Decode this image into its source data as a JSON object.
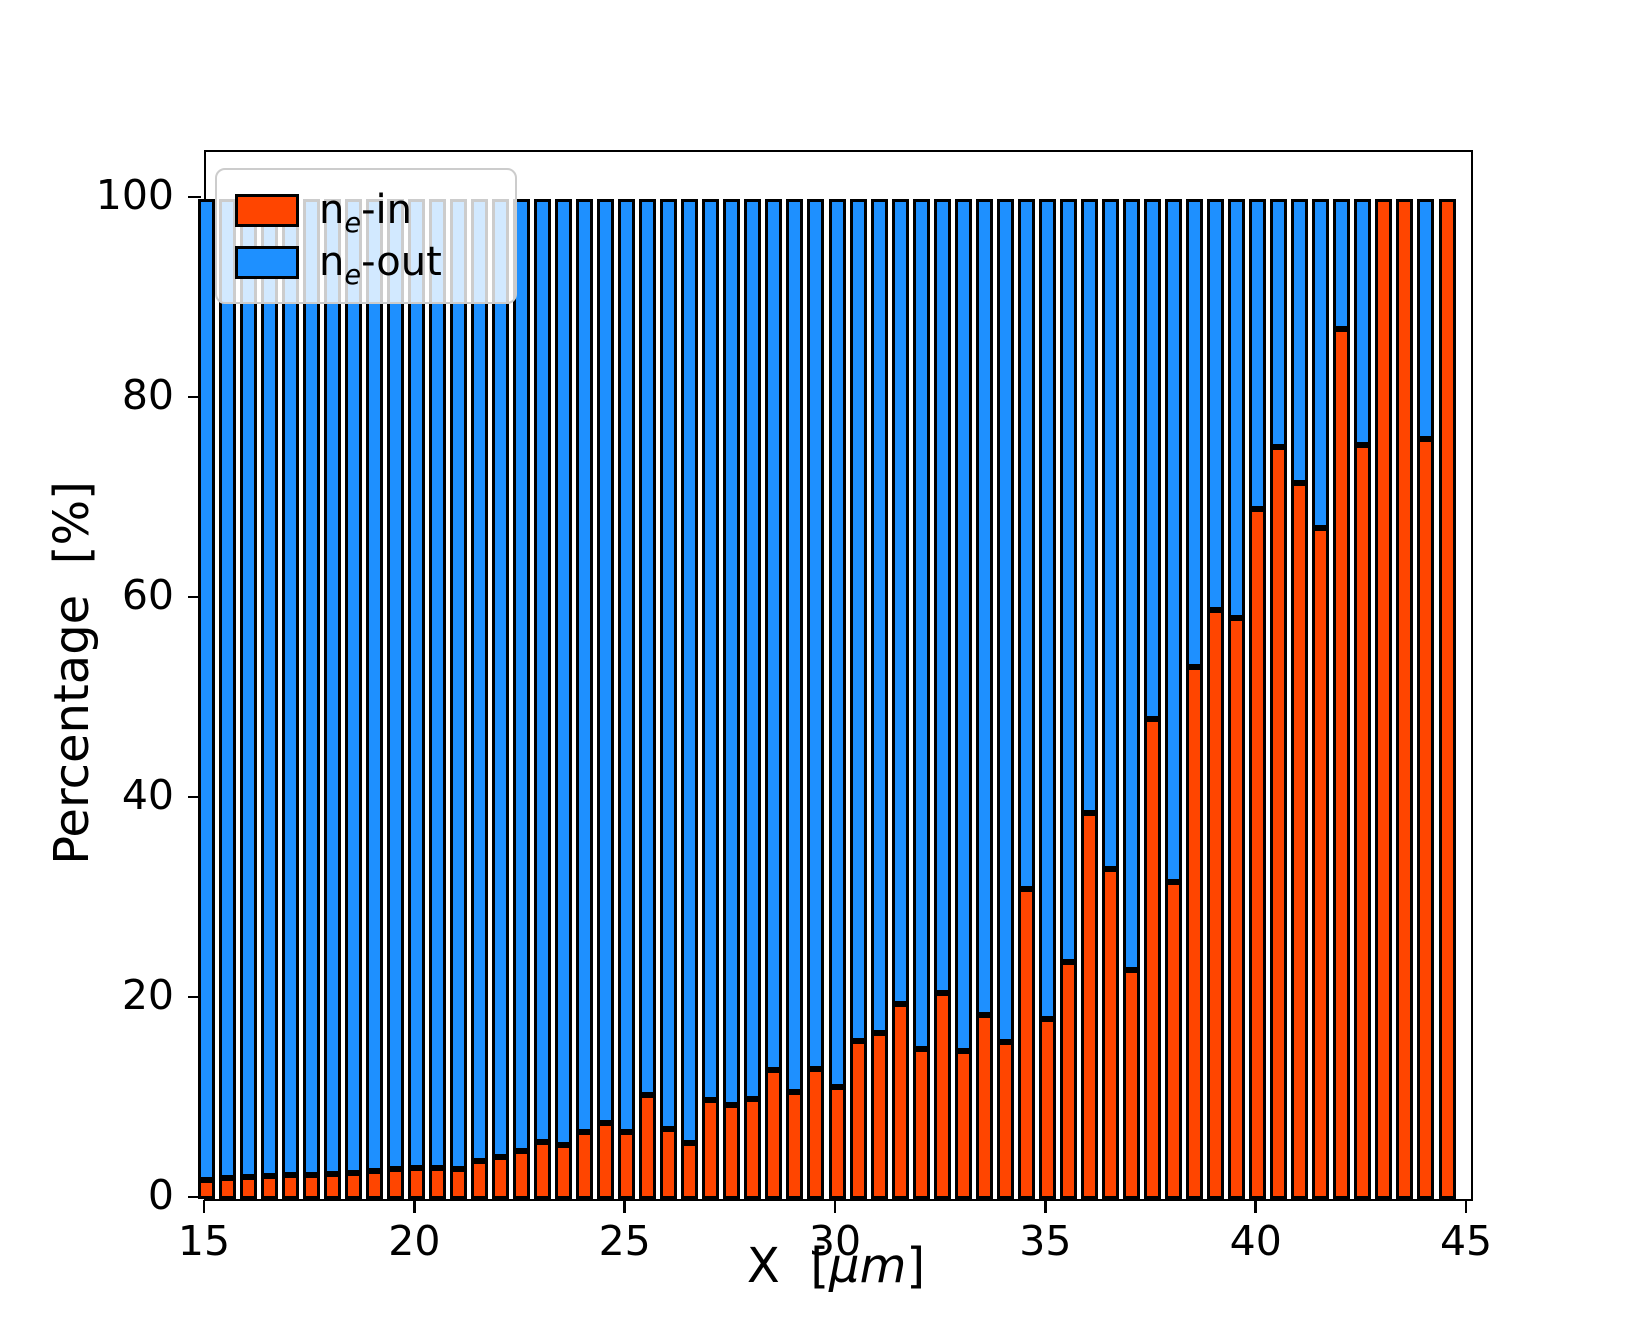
{
  "chart_data": {
    "type": "bar",
    "stacked": true,
    "title": "",
    "xlabel_parts": {
      "pre": "X  [",
      "italic": "μm",
      "post": "]"
    },
    "ylabel": "Percentage  [%]",
    "xlim": [
      15,
      45.07
    ],
    "ylim": [
      0,
      104.7
    ],
    "xticks": [
      15,
      20,
      25,
      30,
      35,
      40,
      45
    ],
    "yticks": [
      0,
      20,
      40,
      60,
      80,
      100
    ],
    "grid": false,
    "legend_position": "upper-left",
    "bar_width_units": 0.4,
    "edge_color": "#000000",
    "x": [
      15.0,
      15.5,
      16.0,
      16.5,
      17.0,
      17.5,
      18.0,
      18.5,
      19.0,
      19.5,
      20.0,
      20.5,
      21.0,
      21.5,
      22.0,
      22.5,
      23.0,
      23.5,
      24.0,
      24.5,
      25.0,
      25.5,
      26.0,
      26.5,
      27.0,
      27.5,
      28.0,
      28.5,
      29.0,
      29.5,
      30.0,
      30.5,
      31.0,
      31.5,
      32.0,
      32.5,
      33.0,
      33.5,
      34.0,
      34.5,
      35.0,
      35.5,
      36.0,
      36.5,
      37.0,
      37.5,
      38.0,
      38.5,
      39.0,
      39.5,
      40.0,
      40.5,
      41.0,
      41.5,
      42.0,
      42.5,
      43.0,
      43.5,
      44.0,
      44.5
    ],
    "series": [
      {
        "name": "ne-in",
        "color": "#ff4500",
        "values": [
          1.9,
          2.1,
          2.2,
          2.3,
          2.4,
          2.4,
          2.5,
          2.6,
          2.8,
          3.0,
          3.1,
          3.1,
          3.0,
          3.8,
          4.2,
          4.8,
          5.7,
          5.4,
          6.7,
          7.6,
          6.7,
          10.4,
          7.0,
          5.6,
          9.9,
          9.4,
          10.0,
          12.9,
          10.7,
          13.0,
          11.2,
          15.8,
          16.6,
          19.5,
          15.0,
          20.6,
          14.8,
          18.4,
          15.7,
          31.0,
          18.0,
          23.7,
          38.6,
          33.0,
          22.9,
          48.0,
          31.7,
          53.2,
          58.9,
          58.1,
          69.0,
          75.2,
          71.6,
          67.1,
          87.0,
          75.4,
          100.0,
          100.0,
          76.0,
          100.0
        ]
      },
      {
        "name": "ne-out",
        "color": "#1e90ff",
        "values": [
          98.1,
          97.9,
          97.8,
          97.7,
          97.6,
          97.6,
          97.5,
          97.4,
          97.2,
          97.0,
          96.9,
          96.9,
          97.0,
          96.2,
          95.8,
          95.2,
          94.3,
          94.6,
          93.3,
          92.4,
          93.3,
          89.6,
          93.0,
          94.4,
          90.1,
          90.6,
          90.0,
          87.1,
          89.3,
          87.0,
          88.8,
          84.2,
          83.4,
          80.5,
          85.0,
          79.4,
          85.2,
          81.6,
          84.3,
          69.0,
          82.0,
          76.3,
          61.4,
          67.0,
          77.1,
          52.0,
          68.3,
          46.8,
          41.1,
          41.9,
          31.0,
          24.8,
          28.4,
          32.9,
          13.0,
          24.6,
          0.0,
          0.0,
          24.0,
          0.0
        ]
      }
    ],
    "legend_entries": [
      {
        "pre": "n",
        "sub": "e",
        "post": "-in"
      },
      {
        "pre": "n",
        "sub": "e",
        "post": "-out"
      }
    ]
  }
}
